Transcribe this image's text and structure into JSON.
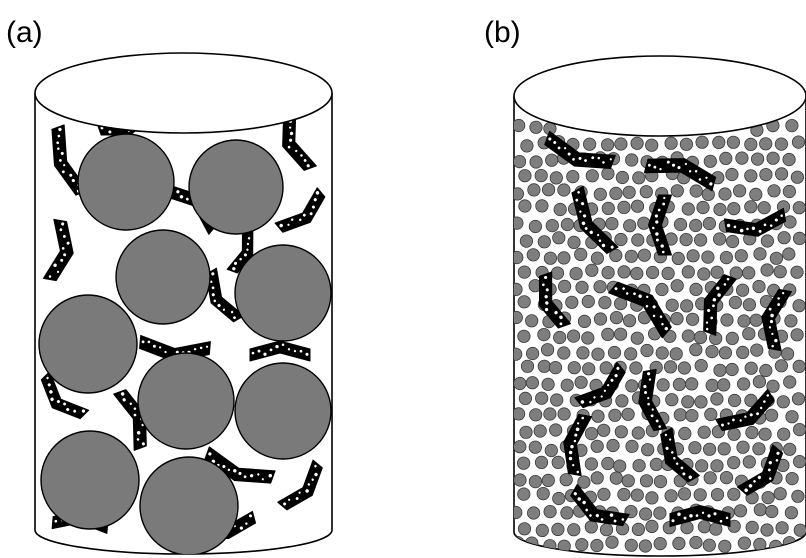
{
  "panels": [
    {
      "label": "(a)"
    },
    {
      "label": "(b)"
    }
  ],
  "colors": {
    "particle": "#7a7a7a",
    "flake": "#000000",
    "pore": "#ffffff",
    "outline": "#000000"
  }
}
